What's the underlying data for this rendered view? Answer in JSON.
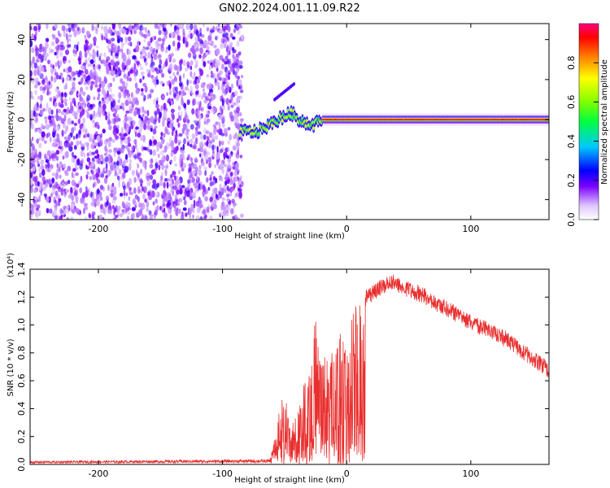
{
  "chart_data": [
    {
      "type": "heatmap",
      "title": "GN02.2024.001.11.09.R22",
      "xlabel": "Height of straight line (km)",
      "ylabel": "Frequency (Hz)",
      "xlim": [
        -255,
        163
      ],
      "ylim": [
        -50,
        48
      ],
      "x_ticks": [
        "-200",
        "-100",
        "0",
        "100"
      ],
      "y_ticks": [
        "-40",
        "-20",
        "0",
        "20",
        "40"
      ],
      "colorbar": {
        "label": "Normalized spectral amplitude",
        "ticks": [
          "0.0",
          "0.2",
          "0.4",
          "0.6",
          "0.8"
        ],
        "range": [
          0,
          1
        ]
      },
      "noise_region_x": [
        -255,
        -84
      ],
      "ridge": {
        "description_points": [
          {
            "x": -84,
            "y": -6
          },
          {
            "x": -72,
            "y": -6
          },
          {
            "x": -60,
            "y": -2
          },
          {
            "x": -50,
            "y": 2
          },
          {
            "x": -44,
            "y": 3
          },
          {
            "x": -38,
            "y": 0
          },
          {
            "x": -28,
            "y": -3
          },
          {
            "x": -20,
            "y": 0
          },
          {
            "x": 163,
            "y": 0
          }
        ],
        "stable_frequency_hz": 0
      }
    },
    {
      "type": "line",
      "xlabel": "Height of straight line (km)",
      "ylabel": "SNR (10 * v/v)",
      "y_multiplier": "(x10⁴)",
      "xlim": [
        -255,
        163
      ],
      "ylim": [
        0,
        1.4
      ],
      "x_ticks": [
        "-200",
        "-100",
        "0",
        "100"
      ],
      "y_ticks": [
        "0.0",
        "0.2",
        "0.4",
        "0.6",
        "0.8",
        "1.0",
        "1.2",
        "1.4"
      ],
      "series": [
        {
          "color": "#e8302f",
          "envelope": [
            {
              "x": -255,
              "y": 0.02
            },
            {
              "x": -62,
              "y": 0.03
            },
            {
              "x": -55,
              "y": 0.35
            },
            {
              "x": -50,
              "y": 0.55
            },
            {
              "x": -45,
              "y": 0.25
            },
            {
              "x": -35,
              "y": 0.55
            },
            {
              "x": -25,
              "y": 1.05
            },
            {
              "x": -15,
              "y": 0.75
            },
            {
              "x": 0,
              "y": 1.05
            },
            {
              "x": 15,
              "y": 1.25
            },
            {
              "x": 35,
              "y": 1.37
            },
            {
              "x": 60,
              "y": 1.28
            },
            {
              "x": 100,
              "y": 1.08
            },
            {
              "x": 130,
              "y": 0.95
            },
            {
              "x": 163,
              "y": 0.73
            }
          ]
        }
      ]
    }
  ]
}
